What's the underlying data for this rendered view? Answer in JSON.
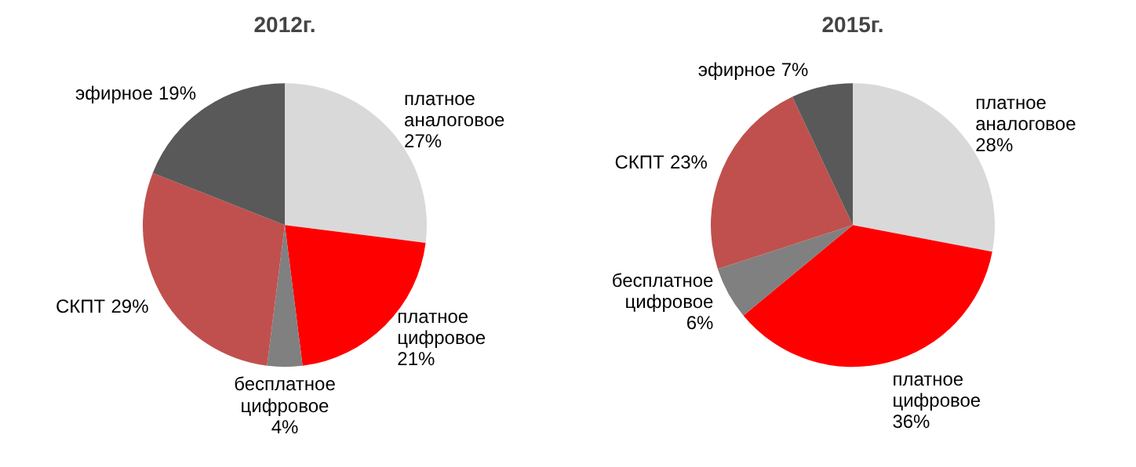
{
  "chart_data": [
    {
      "type": "pie",
      "title": "2012г.",
      "categories": [
        "платное аналоговое",
        "платное цифровое",
        "бесплатное цифровое",
        "СКПТ",
        "эфирное"
      ],
      "values": [
        27,
        21,
        4,
        29,
        19
      ],
      "value_labels": [
        "27%",
        "21%",
        "4%",
        "29%",
        "19%"
      ],
      "colors": [
        "#d9d9d9",
        "#ff0000",
        "#808080",
        "#c0504d",
        "#595959"
      ]
    },
    {
      "type": "pie",
      "title": "2015г.",
      "categories": [
        "платное аналоговое",
        "платное цифровое",
        "бесплатное цифровое",
        "СКПТ",
        "эфирное"
      ],
      "values": [
        28,
        36,
        6,
        23,
        7
      ],
      "value_labels": [
        "28%",
        "36%",
        "6%",
        "23%",
        "7%"
      ],
      "colors": [
        "#d9d9d9",
        "#ff0000",
        "#808080",
        "#c0504d",
        "#595959"
      ]
    }
  ]
}
